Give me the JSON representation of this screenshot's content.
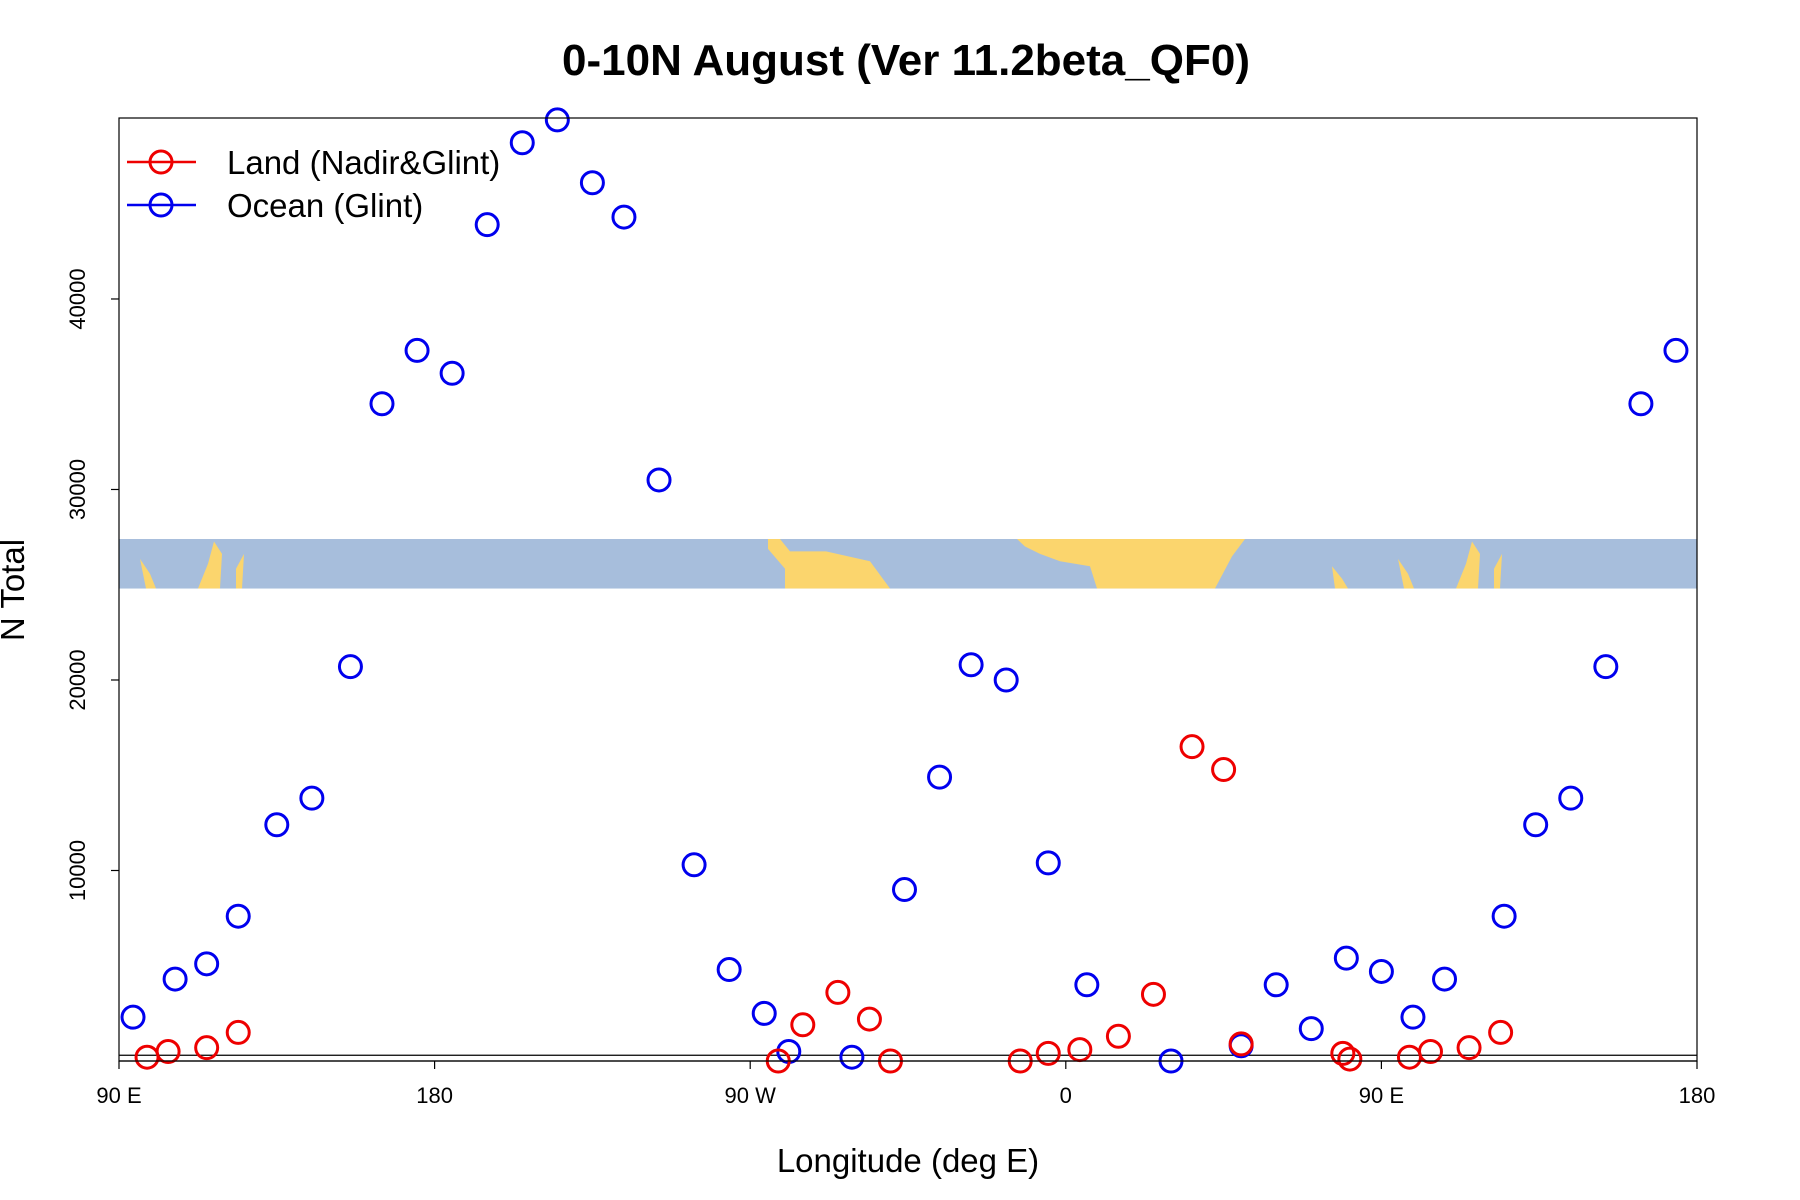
{
  "chart_data": {
    "type": "scatter",
    "title": "0-10N August (Ver 11.2beta_QF0)",
    "xlabel": "Longitude (deg E)",
    "ylabel": "N Total",
    "xlim": [
      0,
      450
    ],
    "ylim": [
      0,
      49500
    ],
    "x_note": "x is degrees of longitude measured eastward from 90 E (0 = 90 E, 90 = 180, 180 = 90 W, 270 = 0, 360 = 90 E, 450 = 180)",
    "xticks": [
      {
        "value": 0,
        "label": "90 E"
      },
      {
        "value": 90,
        "label": "180"
      },
      {
        "value": 180,
        "label": "90 W"
      },
      {
        "value": 270,
        "label": "0"
      },
      {
        "value": 360,
        "label": "90 E"
      },
      {
        "value": 450,
        "label": "180"
      }
    ],
    "yticks": [
      {
        "value": 10000,
        "label": "10000"
      },
      {
        "value": 20000,
        "label": "20000"
      },
      {
        "value": 30000,
        "label": "30000"
      },
      {
        "value": 40000,
        "label": "40000"
      }
    ],
    "legend": {
      "position": "top-left",
      "entries": [
        {
          "label": "Land (Nadir&Glint)",
          "color": "#ee0000"
        },
        {
          "label": "Ocean (Glint)",
          "color": "#0000ee"
        }
      ]
    },
    "map_strip": {
      "y_from": 24800,
      "y_to": 27400,
      "ocean_color": "#a7bedc",
      "land_color": "#fbd56d"
    },
    "baseline_values": [
      0,
      300
    ],
    "series": [
      {
        "name": "Ocean (Glint)",
        "color": "#0000ee",
        "x": [
          4,
          16,
          25,
          34,
          45,
          55,
          66,
          75,
          85,
          95,
          105,
          115,
          125,
          135,
          144,
          154,
          164,
          174,
          184,
          191,
          209,
          224,
          234,
          243,
          253,
          265,
          276,
          300,
          320,
          330,
          340,
          350,
          360,
          369,
          378,
          395,
          404,
          414,
          424,
          434,
          444
        ],
        "y": [
          2300,
          4300,
          5100,
          7600,
          12400,
          13800,
          20700,
          34500,
          37300,
          36100,
          43900,
          48200,
          49400,
          46100,
          44300,
          30500,
          10300,
          4800,
          2500,
          500,
          200,
          9000,
          14900,
          20800,
          20000,
          10400,
          4000,
          0,
          800,
          4000,
          1700,
          5400,
          4700,
          2300,
          4300,
          7600,
          12400,
          13800,
          20700,
          34500,
          37300
        ]
      },
      {
        "name": "Land (Nadir&Glint)",
        "color": "#ee0000",
        "x": [
          8,
          14,
          25,
          34,
          188,
          195,
          205,
          214,
          220,
          257,
          265,
          274,
          285,
          295,
          306,
          315,
          320,
          349,
          351,
          368,
          374,
          385,
          394
        ],
        "y": [
          200,
          500,
          700,
          1500,
          0,
          1900,
          3600,
          2200,
          0,
          0,
          400,
          600,
          1300,
          3500,
          16500,
          15300,
          900,
          400,
          100,
          200,
          500,
          700,
          1500
        ]
      }
    ]
  }
}
